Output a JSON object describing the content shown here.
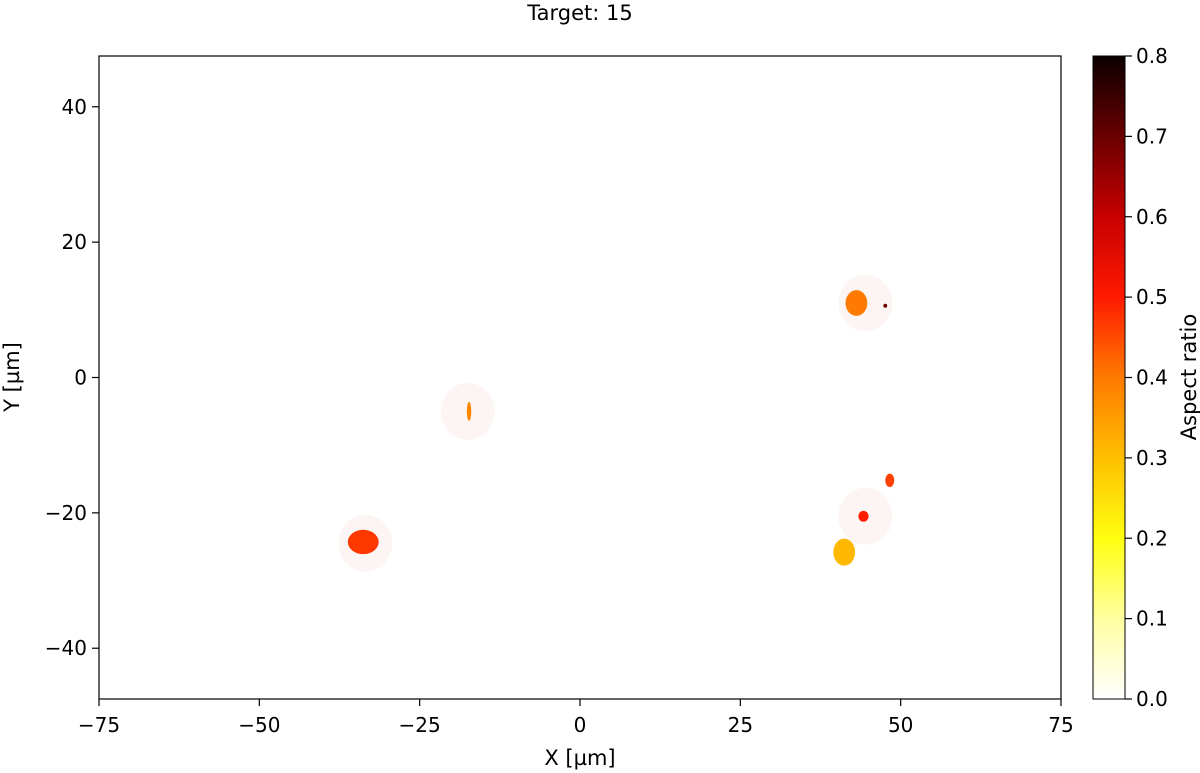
{
  "chart_data": {
    "type": "scatter",
    "title": "Target: 15",
    "xlabel": "X [µm]",
    "ylabel": "Y [µm]",
    "xlim": [
      -75,
      75
    ],
    "ylim": [
      -47.5,
      47.5
    ],
    "grid": false,
    "xticks": [
      -75,
      -50,
      -25,
      0,
      25,
      50,
      75
    ],
    "xtick_labels": [
      "−75",
      "−50",
      "−25",
      "0",
      "25",
      "50",
      "75"
    ],
    "yticks": [
      -40,
      -20,
      0,
      20,
      40
    ],
    "ytick_labels": [
      "−40",
      "−20",
      "0",
      "20",
      "40"
    ],
    "colorbar": {
      "label": "Aspect ratio",
      "min": 0.0,
      "max": 0.8,
      "colormap": "hot_r",
      "ticks": [
        0.0,
        0.1,
        0.2,
        0.3,
        0.4,
        0.5,
        0.6,
        0.7,
        0.8
      ],
      "tick_labels": [
        "0.0",
        "0.1",
        "0.2",
        "0.3",
        "0.4",
        "0.5",
        "0.6",
        "0.7",
        "0.8"
      ]
    },
    "halos": [
      {
        "x": -17.5,
        "y": -5.0,
        "r": 4.2
      },
      {
        "x": -33.5,
        "y": -24.5,
        "r": 4.2
      },
      {
        "x": 44.5,
        "y": 11.0,
        "r": 4.2
      },
      {
        "x": 44.5,
        "y": -20.5,
        "r": 4.2
      }
    ],
    "halo_color": "#fcf5f3",
    "particles": [
      {
        "x": -33.8,
        "y": -24.3,
        "rx": 2.4,
        "ry": 1.8,
        "value": 0.47
      },
      {
        "x": -17.3,
        "y": -5.0,
        "rx": 0.35,
        "ry": 1.4,
        "value": 0.38
      },
      {
        "x": 43.1,
        "y": 11.0,
        "rx": 1.7,
        "ry": 1.9,
        "value": 0.4
      },
      {
        "x": 47.6,
        "y": 10.6,
        "rx": 0.3,
        "ry": 0.3,
        "value": 0.7
      },
      {
        "x": 44.2,
        "y": -20.5,
        "rx": 0.8,
        "ry": 0.8,
        "value": 0.5
      },
      {
        "x": 48.3,
        "y": -15.2,
        "rx": 0.7,
        "ry": 1.0,
        "value": 0.46
      },
      {
        "x": 41.2,
        "y": -25.8,
        "rx": 1.7,
        "ry": 2.0,
        "value": 0.31
      }
    ]
  }
}
